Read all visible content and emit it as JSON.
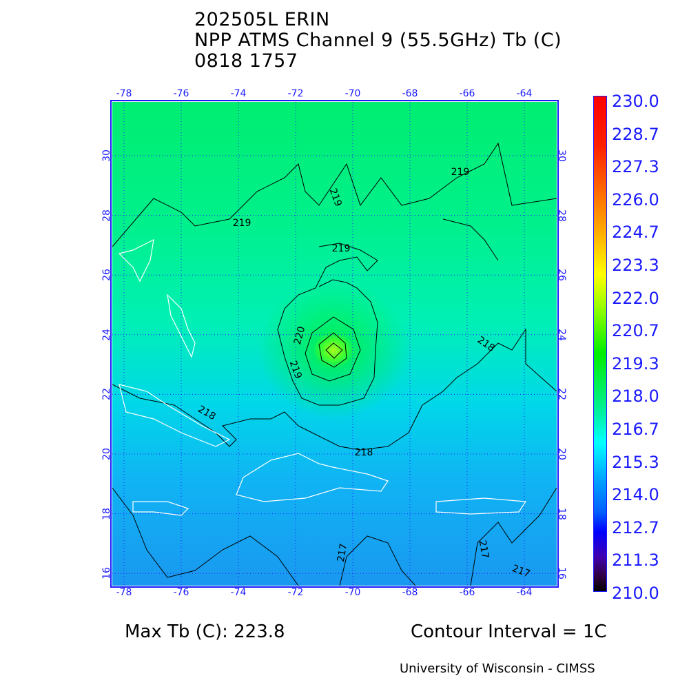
{
  "title": {
    "line1": "202505L ERIN",
    "line2": "NPP ATMS Channel 9 (55.5GHz) Tb (C)",
    "line3": "0818 1757"
  },
  "map": {
    "lon_ticks": [
      "-78",
      "-76",
      "-74",
      "-72",
      "-70",
      "-68",
      "-66",
      "-64"
    ],
    "lat_ticks": [
      "30",
      "28",
      "26",
      "24",
      "22",
      "20",
      "18",
      "16"
    ],
    "contour_labels": [
      "219",
      "219",
      "219",
      "219",
      "220",
      "219",
      "218",
      "218",
      "218",
      "217",
      "217",
      "217"
    ]
  },
  "colorbar": {
    "labels": [
      "230.0",
      "228.7",
      "227.3",
      "226.0",
      "224.7",
      "223.3",
      "222.0",
      "220.7",
      "219.3",
      "218.0",
      "216.7",
      "215.3",
      "214.0",
      "212.7",
      "211.3",
      "210.0"
    ],
    "min": 210.0,
    "max": 230.0
  },
  "footer": {
    "max_tb": "Max Tb (C): 223.8",
    "contour_interval": "Contour Interval = 1C",
    "credit": "University of Wisconsin - CIMSS"
  }
}
